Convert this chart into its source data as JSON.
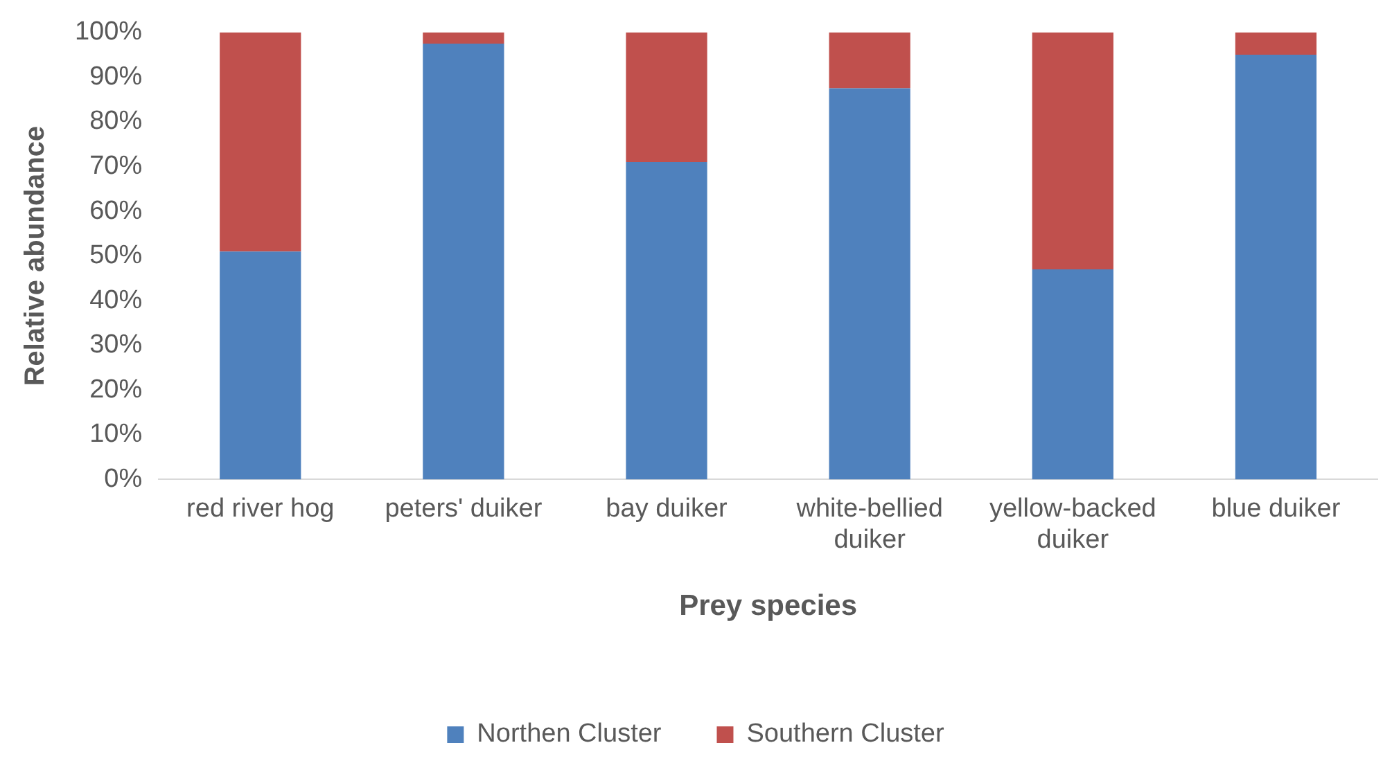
{
  "chart_data": {
    "type": "bar",
    "stacked": true,
    "xlabel": "Prey species",
    "ylabel": "Relative abundance",
    "categories": [
      "red river hog",
      "peters' duiker",
      "bay duiker",
      "white-bellied duiker",
      "yellow-backed duiker",
      "blue duiker"
    ],
    "series": [
      {
        "name": "Northen Cluster",
        "color": "#4f81bd",
        "values": [
          51,
          97.5,
          71,
          87.5,
          47,
          95
        ]
      },
      {
        "name": "Southern Cluster",
        "color": "#c0504d",
        "values": [
          49,
          2.5,
          29,
          12.5,
          53,
          5
        ]
      }
    ],
    "ylim": [
      0,
      100
    ],
    "yticks": [
      {
        "value": 0,
        "label": "0%"
      },
      {
        "value": 10,
        "label": "10%"
      },
      {
        "value": 20,
        "label": "20%"
      },
      {
        "value": 30,
        "label": "30%"
      },
      {
        "value": 40,
        "label": "40%"
      },
      {
        "value": 50,
        "label": "50%"
      },
      {
        "value": 60,
        "label": "60%"
      },
      {
        "value": 70,
        "label": "70%"
      },
      {
        "value": 80,
        "label": "80%"
      },
      {
        "value": 90,
        "label": "90%"
      },
      {
        "value": 100,
        "label": "100%"
      }
    ],
    "grid": false,
    "legend": "bottom"
  }
}
